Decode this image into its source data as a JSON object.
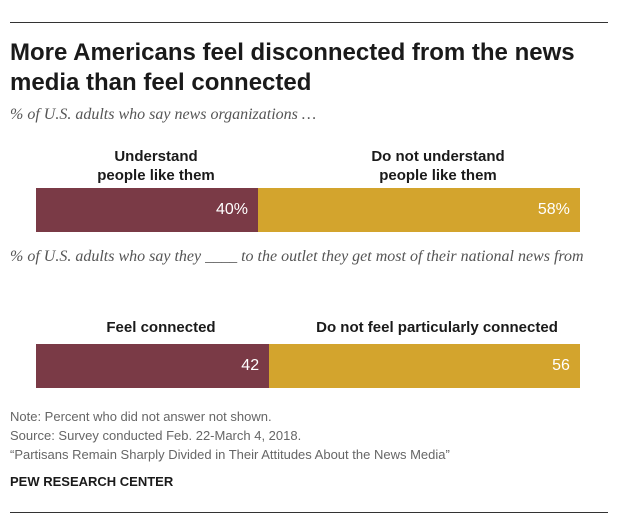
{
  "title": "More Americans feel disconnected from the news media than feel connected",
  "notes": {
    "note": "Note: Percent who did not answer not shown.",
    "source": "Source: Survey conducted Feb. 22-March 4, 2018.",
    "report": "“Partisans Remain Sharply Divided in Their Attitudes About the News Media”"
  },
  "brand": "PEW RESEARCH CENTER",
  "colors": {
    "first": "#7a3a46",
    "second": "#d3a42d"
  },
  "chart_data": [
    {
      "type": "bar",
      "orientation": "horizontal-stacked",
      "title": "",
      "subtitle": "% of U.S. adults who say news organizations …",
      "categories": [
        "Understand people like them",
        "Do not understand people like them"
      ],
      "label_lines": [
        [
          "Understand",
          "people like them"
        ],
        [
          "Do not understand",
          "people like them"
        ]
      ],
      "values": [
        40,
        58
      ],
      "value_labels": [
        "40%",
        "58%"
      ],
      "xlim": [
        0,
        100
      ]
    },
    {
      "type": "bar",
      "orientation": "horizontal-stacked",
      "title": "",
      "subtitle": "% of U.S. adults who say they ____ to the outlet they get most of their national news from",
      "categories": [
        "Feel connected",
        "Do not feel particularly connected"
      ],
      "label_lines": [
        [
          "Feel connected"
        ],
        [
          "Do not feel particularly connected"
        ]
      ],
      "values": [
        42,
        56
      ],
      "value_labels": [
        "42",
        "56"
      ],
      "xlim": [
        0,
        100
      ]
    }
  ]
}
